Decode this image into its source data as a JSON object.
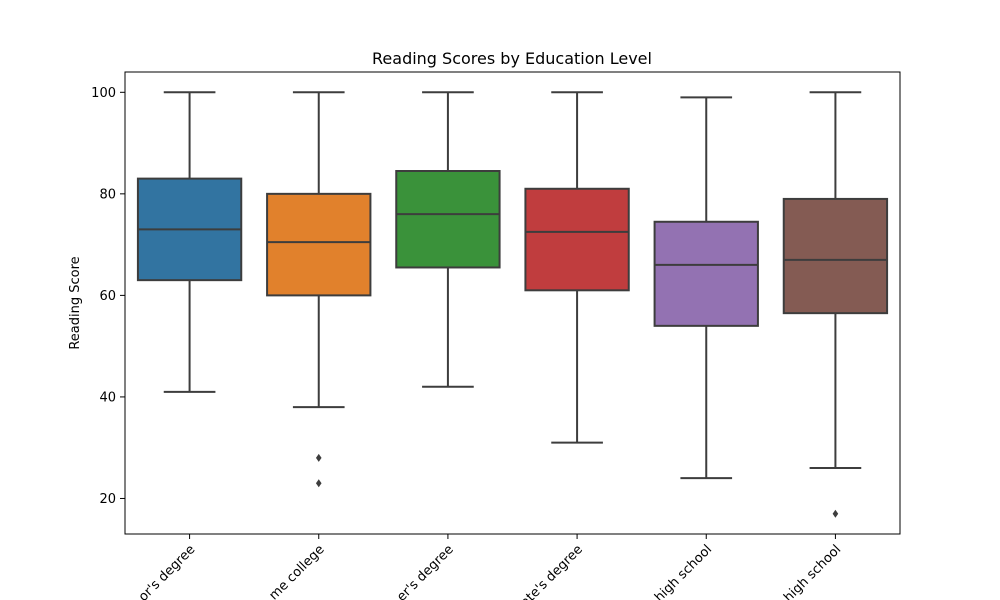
{
  "chart_data": {
    "type": "box",
    "title": "Reading Scores by Education Level",
    "xlabel": "",
    "ylabel": "Reading Score",
    "ylim": [
      13,
      104
    ],
    "yticks": [
      20,
      40,
      60,
      80,
      100
    ],
    "grid": false,
    "categories": [
      "bachelor's degree",
      "some college",
      "master's degree",
      "associate's degree",
      "high school",
      "some high school"
    ],
    "visible_category_labels": [
      "or's degree",
      "me college",
      "er's degree",
      "ate's degree",
      "high school",
      "high school"
    ],
    "boxes": [
      {
        "category": "bachelor's degree",
        "whisker_low": 41,
        "q1": 63,
        "median": 73,
        "q3": 83,
        "whisker_high": 100,
        "outliers": [],
        "color": "#3274a1"
      },
      {
        "category": "some college",
        "whisker_low": 38,
        "q1": 60,
        "median": 70.5,
        "q3": 80,
        "whisker_high": 100,
        "outliers": [
          28,
          23
        ],
        "color": "#e1812c"
      },
      {
        "category": "master's degree",
        "whisker_low": 42,
        "q1": 65.5,
        "median": 76,
        "q3": 84.5,
        "whisker_high": 100,
        "outliers": [],
        "color": "#3a923a"
      },
      {
        "category": "associate's degree",
        "whisker_low": 31,
        "q1": 61,
        "median": 72.5,
        "q3": 81,
        "whisker_high": 100,
        "outliers": [],
        "color": "#c03d3e"
      },
      {
        "category": "high school",
        "whisker_low": 24,
        "q1": 54,
        "median": 66,
        "q3": 74.5,
        "whisker_high": 99,
        "outliers": [],
        "color": "#9372b2"
      },
      {
        "category": "some high school",
        "whisker_low": 26,
        "q1": 56.5,
        "median": 67,
        "q3": 79,
        "whisker_high": 100,
        "outliers": [
          17
        ],
        "color": "#845b53"
      }
    ]
  }
}
